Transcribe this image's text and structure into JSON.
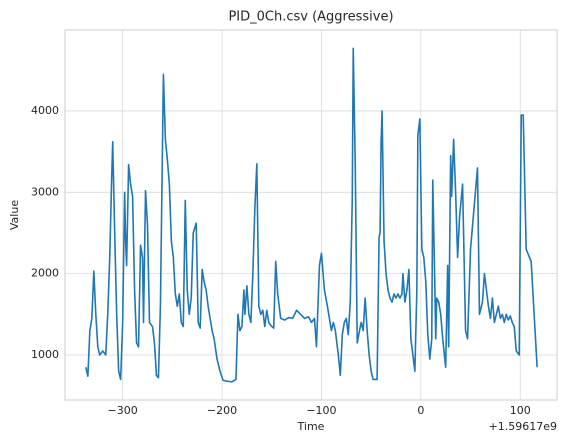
{
  "chart_data": {
    "type": "line",
    "title": "PID_0Ch.csv (Aggressive)",
    "xlabel": "Time",
    "ylabel": "Value",
    "x_offset_label": "+1.59617e9",
    "color": "#1f77b4",
    "grid": true,
    "xlim": [
      -358,
      137
    ],
    "ylim": [
      447,
      4995
    ],
    "xticks": [
      {
        "value": -300,
        "label": "−300"
      },
      {
        "value": -200,
        "label": "−200"
      },
      {
        "value": -100,
        "label": "−100"
      },
      0,
      100
    ],
    "yticks": [
      1000,
      2000,
      3000,
      4000
    ],
    "x": [
      -337,
      -335,
      -333,
      -331,
      -329,
      -327,
      -325,
      -323,
      -320,
      -317,
      -315,
      -313,
      -311,
      -310,
      -308,
      -306,
      -304,
      -302,
      -300,
      -298,
      -297,
      -296,
      -294,
      -292,
      -290,
      -288,
      -286,
      -284,
      -282,
      -280,
      -279,
      -277,
      -275,
      -273,
      -270,
      -268,
      -266,
      -264,
      -262,
      -259,
      -257,
      -255,
      -253,
      -251,
      -249,
      -247,
      -245,
      -243,
      -241,
      -239,
      -237,
      -235,
      -233,
      -231,
      -229,
      -226,
      -224,
      -222,
      -220,
      -218,
      -216,
      -214,
      -212,
      -210,
      -208,
      -205,
      -202,
      -199,
      -196,
      -190,
      -186,
      -184,
      -182,
      -180,
      -178,
      -177,
      -175,
      -173,
      -171,
      -169,
      -167,
      -165,
      -163,
      -161,
      -159,
      -157,
      -155,
      -153,
      -150,
      -148,
      -146,
      -144,
      -141,
      -137,
      -133,
      -129,
      -125,
      -121,
      -117,
      -113,
      -110,
      -107,
      -105,
      -102,
      -100,
      -97,
      -94,
      -92,
      -90,
      -88,
      -86,
      -83,
      -81,
      -79,
      -77,
      -75,
      -73,
      -71,
      -69,
      -68,
      -66,
      -64,
      -62,
      -60,
      -58,
      -56,
      -54,
      -52,
      -50,
      -48,
      -44,
      -42,
      -41,
      -40,
      -39,
      -37,
      -35,
      -33,
      -31,
      -29,
      -27,
      -25,
      -23,
      -21,
      -19,
      -18,
      -16,
      -14,
      -12,
      -10,
      -8,
      -6,
      -4,
      -3,
      -1,
      1,
      3,
      5,
      7,
      9,
      11,
      12,
      14,
      15,
      16,
      18,
      20,
      22,
      25,
      27,
      28,
      30,
      31,
      33,
      35,
      37,
      39,
      42,
      45,
      47,
      50,
      57,
      59,
      62,
      64,
      66,
      68,
      70,
      72,
      74,
      76,
      78,
      80,
      82,
      84,
      86,
      88,
      90,
      92,
      94,
      96,
      99,
      101,
      103,
      106,
      111,
      117
    ],
    "values": [
      850,
      740,
      1300,
      1450,
      2030,
      1500,
      1100,
      1000,
      1050,
      1000,
      1500,
      2200,
      3200,
      3620,
      2500,
      1500,
      800,
      700,
      1400,
      3000,
      2400,
      2100,
      3340,
      3100,
      2950,
      1800,
      1150,
      1100,
      2350,
      2200,
      1400,
      3020,
      2600,
      1400,
      1350,
      1150,
      750,
      720,
      1600,
      4450,
      3650,
      3400,
      3100,
      2400,
      2200,
      1750,
      1600,
      1750,
      1400,
      1350,
      2900,
      1800,
      1500,
      1700,
      2500,
      2620,
      1400,
      1330,
      2050,
      1900,
      1800,
      1600,
      1450,
      1300,
      1200,
      950,
      800,
      690,
      680,
      670,
      700,
      1500,
      1300,
      1350,
      1800,
      1500,
      1850,
      1500,
      1400,
      2000,
      2800,
      3350,
      1600,
      1500,
      1550,
      1350,
      1550,
      1400,
      1350,
      1330,
      2150,
      1750,
      1450,
      1430,
      1460,
      1450,
      1550,
      1500,
      1450,
      1470,
      1400,
      1450,
      1100,
      2100,
      2250,
      1800,
      1600,
      1450,
      1300,
      1400,
      1300,
      1000,
      750,
      1250,
      1400,
      1450,
      1250,
      1650,
      2900,
      4770,
      3350,
      1150,
      1280,
      1400,
      1300,
      1700,
      1300,
      1000,
      800,
      700,
      700,
      2450,
      2500,
      3600,
      4000,
      2400,
      2000,
      1800,
      1700,
      1650,
      1750,
      1700,
      1750,
      1700,
      1750,
      2000,
      1650,
      1800,
      2050,
      1200,
      1000,
      800,
      1800,
      3700,
      3900,
      2300,
      2200,
      1900,
      1250,
      950,
      1200,
      3150,
      1900,
      1200,
      1700,
      1650,
      1500,
      1200,
      850,
      2100,
      1100,
      3450,
      2950,
      3650,
      3000,
      2200,
      2700,
      3100,
      1300,
      1200,
      2300,
      3300,
      1500,
      1650,
      2000,
      1800,
      1600,
      1450,
      1700,
      1400,
      1500,
      1600,
      1450,
      1500,
      1400,
      1500,
      1430,
      1480,
      1400,
      1350,
      1050,
      1000,
      3950,
      3950,
      2300,
      2150,
      850
    ]
  }
}
